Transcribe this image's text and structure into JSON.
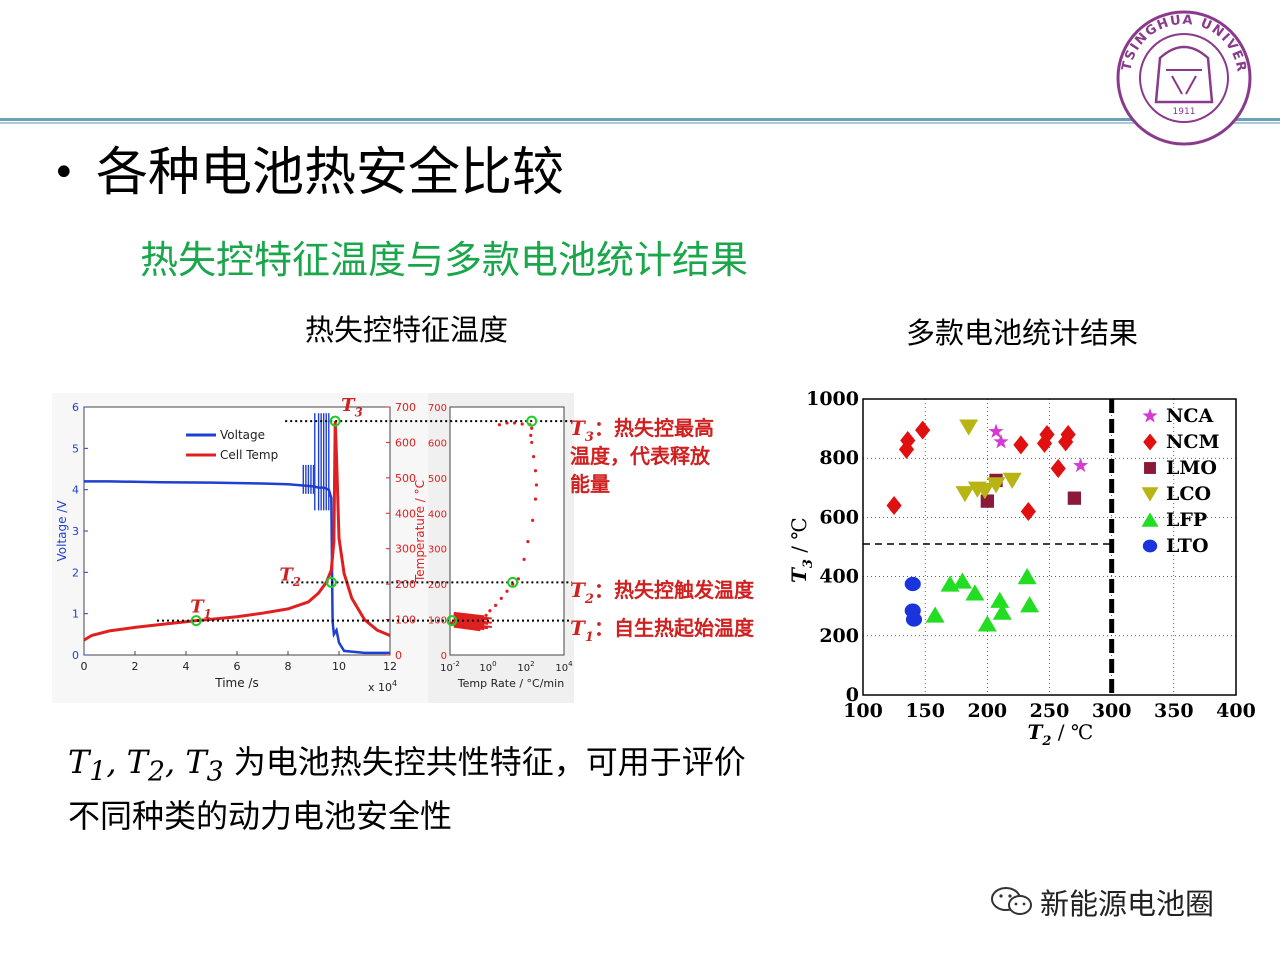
{
  "slide": {
    "bullet_symbol": "•",
    "title": "各种电池热安全比较",
    "subtitle": "热失控特征温度与多款电池统计结果",
    "caption_left": "热失控特征温度",
    "caption_right": "多款电池统计结果",
    "bottom_line1_symbols": [
      {
        "base": "T",
        "sub": "1"
      },
      {
        "base": "T",
        "sub": "2"
      },
      {
        "base": "T",
        "sub": "3"
      }
    ],
    "bottom_line1_separator": ", ",
    "bottom_line1_rest": "为电池热失控共性特征，可用于评价",
    "bottom_line2": "不同种类的动力电池安全性",
    "watermark": "新能源电池圈",
    "logo_top_text": "TSINGHUA UNIVERSITY",
    "logo_year": "1911",
    "colors": {
      "header_line": "#6aa0b8",
      "subtitle_green": "#1aa64b",
      "logo_purple": "#8a3a8c",
      "voltage_blue": "#1f3fd1",
      "temp_red": "#e02020",
      "annot_red": "#d02020"
    }
  },
  "chart_data": [
    {
      "type": "line",
      "title": "",
      "xlabel": "Time /s",
      "x_exponent_label": "x 10",
      "x_exponent": "4",
      "ylabel_left": "Voltage /V",
      "ylabel_right": "Temperature / °C",
      "x_ticks": [
        0,
        2,
        4,
        6,
        8,
        10,
        12
      ],
      "y_left_ticks": [
        0,
        1,
        2,
        3,
        4,
        5,
        6
      ],
      "y_right_ticks": [
        0,
        100,
        200,
        300,
        400,
        500,
        600,
        700
      ],
      "xlim": [
        0,
        12
      ],
      "ylim_left": [
        0,
        6
      ],
      "ylim_right": [
        0,
        700
      ],
      "legend": [
        "Voltage",
        "Cell Temp"
      ],
      "series": [
        {
          "name": "Voltage",
          "axis": "left",
          "x": [
            0,
            1,
            3,
            5,
            7,
            8,
            8.6,
            9.0,
            9.2,
            9.4,
            9.6,
            9.7,
            9.75,
            9.8,
            9.9,
            10.0,
            10.2,
            11,
            12
          ],
          "y": [
            4.2,
            4.2,
            4.18,
            4.17,
            4.15,
            4.13,
            4.1,
            4.08,
            4.05,
            4.05,
            4.0,
            3.8,
            0.8,
            0.5,
            0.6,
            0.3,
            0.1,
            0.05,
            0.05
          ]
        },
        {
          "name": "Cell Temp",
          "axis": "right",
          "x": [
            0,
            0.3,
            1,
            2,
            3,
            4,
            4.4,
            5,
            6,
            7,
            8,
            8.8,
            9.2,
            9.5,
            9.7,
            9.8,
            9.85,
            9.9,
            10.0,
            10.2,
            10.5,
            11,
            11.5,
            12
          ],
          "y": [
            42,
            55,
            68,
            78,
            86,
            94,
            97,
            101,
            108,
            118,
            130,
            150,
            175,
            205,
            240,
            320,
            660,
            560,
            330,
            230,
            160,
            100,
            70,
            55
          ]
        }
      ],
      "markers": [
        {
          "label": "T",
          "sub": "1",
          "x": 4.4,
          "temp": 97
        },
        {
          "label": "T",
          "sub": "2",
          "x": 9.7,
          "temp": 205
        },
        {
          "label": "T",
          "sub": "3",
          "x": 9.85,
          "temp": 660
        }
      ],
      "inset": {
        "type": "scatter",
        "xlabel": "Temp Rate / °C/min",
        "x_ticks_exp": [
          "-2",
          "0",
          "2",
          "4"
        ],
        "x_tick_base": "10",
        "y_ticks": [
          0,
          100,
          200,
          300,
          400,
          500,
          600,
          700
        ],
        "ylim": [
          0,
          700
        ],
        "xlim_log10": [
          -2,
          4
        ],
        "points_log10rate": [
          -1.9,
          -1.7,
          -1.5,
          -1.3,
          -1.1,
          -0.9,
          -0.7,
          -0.5,
          -0.3,
          -0.1,
          0.1,
          0.4,
          0.7,
          1.0,
          1.3,
          1.6,
          1.9,
          2.1,
          2.35,
          2.5,
          2.55,
          2.5,
          2.4,
          2.3,
          2.25,
          2.3,
          2.2,
          1.8,
          1.4,
          1.0,
          0.6
        ],
        "points_temp": [
          90,
          98,
          100,
          105,
          110,
          100,
          95,
          90,
          105,
          112,
          125,
          140,
          160,
          180,
          200,
          215,
          270,
          320,
          380,
          440,
          480,
          520,
          560,
          600,
          620,
          640,
          650,
          652,
          655,
          655,
          650
        ]
      },
      "annotations": [
        {
          "sym": "T",
          "sub": "3",
          "text": "：热失控最高温度，代表释放能量",
          "line1": "：热失控最高",
          "line2": "温度，代表释放",
          "line3": "能量"
        },
        {
          "sym": "T",
          "sub": "2",
          "text": "：热失控触发温度"
        },
        {
          "sym": "T",
          "sub": "1",
          "text": "：自生热起始温度"
        }
      ]
    },
    {
      "type": "scatter",
      "title": "",
      "xlabel": "T",
      "xlabel_sub": "2",
      "xlabel_unit": " / ℃",
      "ylabel": "T",
      "ylabel_sub": "3",
      "ylabel_unit": " / ℃",
      "xlim": [
        100,
        400
      ],
      "ylim": [
        0,
        1000
      ],
      "x_ticks": [
        100,
        150,
        200,
        250,
        300,
        350,
        400
      ],
      "y_ticks": [
        0,
        200,
        400,
        600,
        800,
        1000
      ],
      "grid": true,
      "threshold_vertical": 300,
      "threshold_horizontal_y": 510,
      "legend_position": "top-right",
      "series": [
        {
          "name": "NCA",
          "marker": "star",
          "color": "#d33bd3",
          "points": [
            [
              207,
              890
            ],
            [
              211,
              855
            ],
            [
              275,
              775
            ]
          ]
        },
        {
          "name": "NCM",
          "marker": "diamond",
          "color": "#e01010",
          "points": [
            [
              125,
              640
            ],
            [
              135,
              830
            ],
            [
              136,
              860
            ],
            [
              148,
              895
            ],
            [
              227,
              845
            ],
            [
              233,
              620
            ],
            [
              246,
              850
            ],
            [
              248,
              880
            ],
            [
              257,
              765
            ],
            [
              263,
              855
            ],
            [
              265,
              880
            ]
          ]
        },
        {
          "name": "LMO",
          "marker": "square",
          "color": "#8b1a3a",
          "points": [
            [
              200,
              655
            ],
            [
              207,
              725
            ],
            [
              270,
              665
            ]
          ]
        },
        {
          "name": "LCO",
          "marker": "triangle-down",
          "color": "#b8b414",
          "points": [
            [
              185,
              905
            ],
            [
              182,
              680
            ],
            [
              192,
              695
            ],
            [
              198,
              690
            ],
            [
              207,
              710
            ],
            [
              220,
              725
            ]
          ]
        },
        {
          "name": "LFP",
          "marker": "triangle-up",
          "color": "#22dd22",
          "points": [
            [
              158,
              270
            ],
            [
              170,
              375
            ],
            [
              180,
              385
            ],
            [
              190,
              345
            ],
            [
              200,
              240
            ],
            [
              210,
              320
            ],
            [
              212,
              280
            ],
            [
              232,
              400
            ],
            [
              234,
              305
            ]
          ]
        },
        {
          "name": "LTO",
          "marker": "circle",
          "color": "#1a33dd",
          "points": [
            [
              140,
              375
            ],
            [
              140,
              285
            ],
            [
              141,
              255
            ]
          ]
        }
      ]
    }
  ]
}
